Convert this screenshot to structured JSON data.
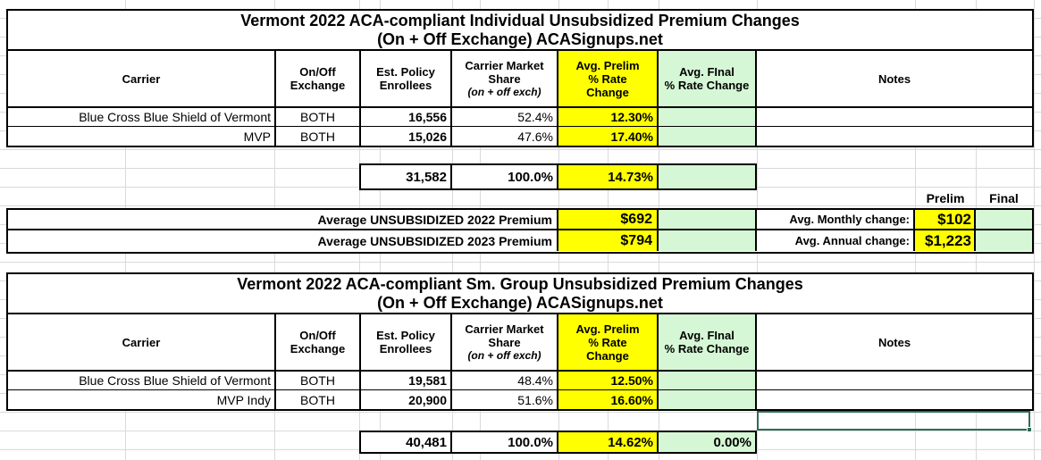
{
  "colors": {
    "highlight_yellow": "#ffff00",
    "highlight_green": "#d5f7d5",
    "selection_border": "#2f6b58"
  },
  "headers": {
    "carrier": "Carrier",
    "exchange": "On/Off\nExchange",
    "enrollees": "Est. Policy\nEnrollees",
    "share": "Carrier Market\nShare",
    "share_note": "(on + off exch)",
    "prelim": "Avg. Prelim\n% Rate\nChange",
    "final": "Avg. FInal\n% Rate Change",
    "notes": "Notes"
  },
  "tables": [
    {
      "title_line1": "Vermont 2022 ACA-compliant Individual Unsubsidized Premium Changes",
      "title_line2": "(On + Off Exchange) ACASignups.net",
      "rows": [
        {
          "carrier": "Blue Cross Blue Shield of Vermont",
          "exchange": "BOTH",
          "enrollees": "16,556",
          "share": "52.4%",
          "prelim": "12.30%",
          "final": "",
          "notes": ""
        },
        {
          "carrier": "MVP",
          "exchange": "BOTH",
          "enrollees": "15,026",
          "share": "47.6%",
          "prelim": "17.40%",
          "final": "",
          "notes": ""
        }
      ],
      "totals": {
        "enrollees": "31,582",
        "share": "100.0%",
        "prelim": "14.73%",
        "final": ""
      }
    },
    {
      "title_line1": "Vermont 2022 ACA-compliant Sm. Group Unsubsidized Premium Changes",
      "title_line2": "(On + Off Exchange) ACASignups.net",
      "rows": [
        {
          "carrier": "Blue Cross Blue Shield of Vermont",
          "exchange": "BOTH",
          "enrollees": "19,581",
          "share": "48.4%",
          "prelim": "12.50%",
          "final": "",
          "notes": ""
        },
        {
          "carrier": "MVP Indy",
          "exchange": "BOTH",
          "enrollees": "20,900",
          "share": "51.6%",
          "prelim": "16.60%",
          "final": "",
          "notes": ""
        }
      ],
      "totals": {
        "enrollees": "40,481",
        "share": "100.0%",
        "prelim": "14.62%",
        "final": "0.00%"
      }
    }
  ],
  "summary": {
    "prelim_label": "Prelim",
    "final_label": "Final",
    "rows": [
      {
        "label": "Average UNSUBSIDIZED 2022 Premium",
        "value": "$692",
        "final": "",
        "change_label": "Avg. Monthly change:",
        "change_value": "$102",
        "change_final": ""
      },
      {
        "label": "Average UNSUBSIDIZED 2023 Premium",
        "value": "$794",
        "final": "",
        "change_label": "Avg. Annual change:",
        "change_value": "$1,223",
        "change_final": ""
      }
    ]
  }
}
